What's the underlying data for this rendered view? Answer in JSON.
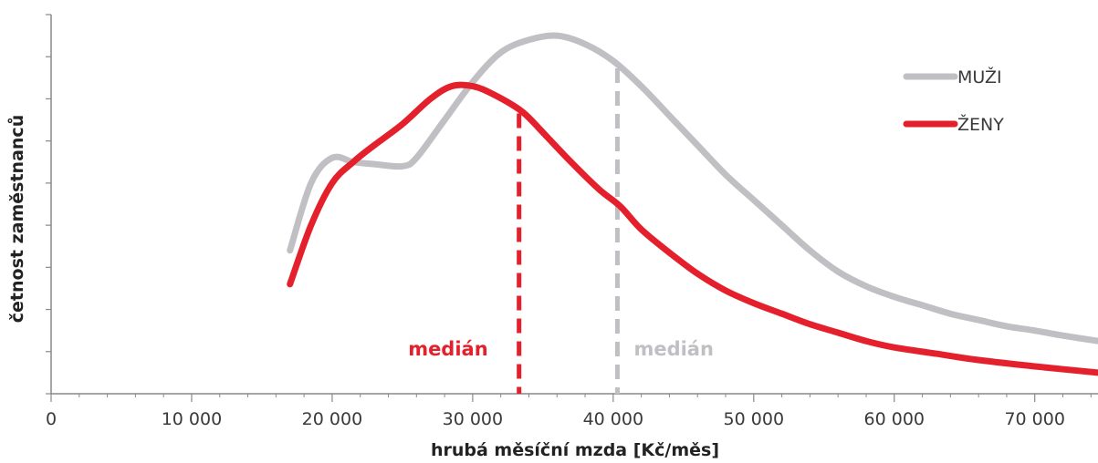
{
  "chart_data": {
    "type": "line",
    "title": "",
    "xlabel": "hrubá měsíční mzda [Kč/měs]",
    "ylabel": "četnost zaměstnanců",
    "xlim": [
      0,
      74500
    ],
    "ylim": [
      0,
      9
    ],
    "x_ticks": [
      0,
      10000,
      20000,
      30000,
      40000,
      50000,
      60000,
      70000
    ],
    "x_tick_labels": [
      "0",
      "10 000",
      "20 000",
      "30 000",
      "40 000",
      "50 000",
      "60 000",
      "70 000"
    ],
    "y_tick_labels_shown": false,
    "grid": false,
    "legend_position": "top-right",
    "colors": {
      "muzi": "#c0c0c4",
      "zeny": "#e4202c",
      "axis": "#888888"
    },
    "series": [
      {
        "name": "MUŽI",
        "color": "#c0c0c4",
        "x": [
          17000,
          18500,
          20000,
          21500,
          23000,
          25000,
          26000,
          28000,
          30000,
          32000,
          34000,
          36000,
          38000,
          40000,
          42000,
          44000,
          46000,
          48000,
          50000,
          52000,
          54000,
          56000,
          58000,
          60000,
          62000,
          64000,
          66000,
          68000,
          70000,
          72000,
          74500
        ],
        "y": [
          3.4,
          5.0,
          5.6,
          5.5,
          5.45,
          5.4,
          5.6,
          6.5,
          7.4,
          8.1,
          8.4,
          8.5,
          8.3,
          7.9,
          7.3,
          6.6,
          5.9,
          5.2,
          4.6,
          4.0,
          3.4,
          2.9,
          2.55,
          2.3,
          2.1,
          1.9,
          1.75,
          1.6,
          1.5,
          1.38,
          1.25
        ]
      },
      {
        "name": "ŽENY",
        "color": "#e4202c",
        "x": [
          17000,
          18500,
          20000,
          21500,
          23000,
          25000,
          27000,
          28500,
          30000,
          31500,
          33500,
          35000,
          37000,
          39000,
          40500,
          42000,
          44000,
          46000,
          48000,
          50000,
          52000,
          54000,
          56000,
          58000,
          60000,
          63000,
          66000,
          70000,
          74500
        ],
        "y": [
          2.6,
          4.0,
          5.0,
          5.5,
          5.9,
          6.4,
          7.0,
          7.3,
          7.3,
          7.1,
          6.7,
          6.2,
          5.5,
          4.85,
          4.45,
          3.9,
          3.35,
          2.85,
          2.45,
          2.15,
          1.9,
          1.65,
          1.45,
          1.25,
          1.1,
          0.95,
          0.8,
          0.65,
          0.5
        ]
      }
    ],
    "medians": [
      {
        "series": "ŽENY",
        "x": 33300,
        "label": "medián",
        "color": "#e4202c",
        "label_side": "left"
      },
      {
        "series": "MUŽI",
        "x": 40300,
        "label": "medián",
        "color": "#c0c0c4",
        "label_side": "right"
      }
    ]
  }
}
